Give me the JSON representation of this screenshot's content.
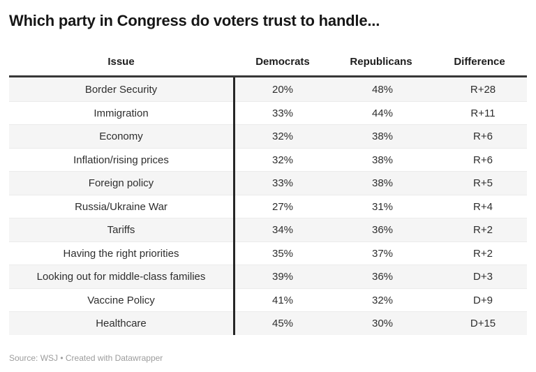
{
  "title": "Which party in Congress do voters trust to handle...",
  "footer": {
    "source": "Source: WSJ • Created with Datawrapper"
  },
  "chart_data": {
    "type": "table",
    "title": "Which party in Congress do voters trust to handle...",
    "columns": [
      "Issue",
      "Democrats",
      "Republicans",
      "Difference"
    ],
    "rows": [
      [
        "Border Security",
        "20%",
        "48%",
        "R+28"
      ],
      [
        "Immigration",
        "33%",
        "44%",
        "R+11"
      ],
      [
        "Economy",
        "32%",
        "38%",
        "R+6"
      ],
      [
        "Inflation/rising prices",
        "32%",
        "38%",
        "R+6"
      ],
      [
        "Foreign policy",
        "33%",
        "38%",
        "R+5"
      ],
      [
        "Russia/Ukraine War",
        "27%",
        "31%",
        "R+4"
      ],
      [
        "Tariffs",
        "34%",
        "36%",
        "R+2"
      ],
      [
        "Having the right priorities",
        "35%",
        "37%",
        "R+2"
      ],
      [
        "Looking out for middle-class families",
        "39%",
        "36%",
        "D+3"
      ],
      [
        "Vaccine Policy",
        "41%",
        "32%",
        "D+9"
      ],
      [
        "Healthcare",
        "45%",
        "30%",
        "D+15"
      ]
    ],
    "layout_hints": {
      "striped_rows": true,
      "divider_after_column": 1,
      "text_align": "center",
      "legend": "none",
      "grid": "horizontal-light"
    }
  },
  "colors": {
    "background": "#ffffff",
    "title_text": "#161616",
    "cell_text": "#2e2e2e",
    "stripe": "#f5f5f5",
    "header_border": "#383838",
    "column_divider": "#262626",
    "row_border": "#ebebeb",
    "footer_text": "#9c9c9c"
  }
}
